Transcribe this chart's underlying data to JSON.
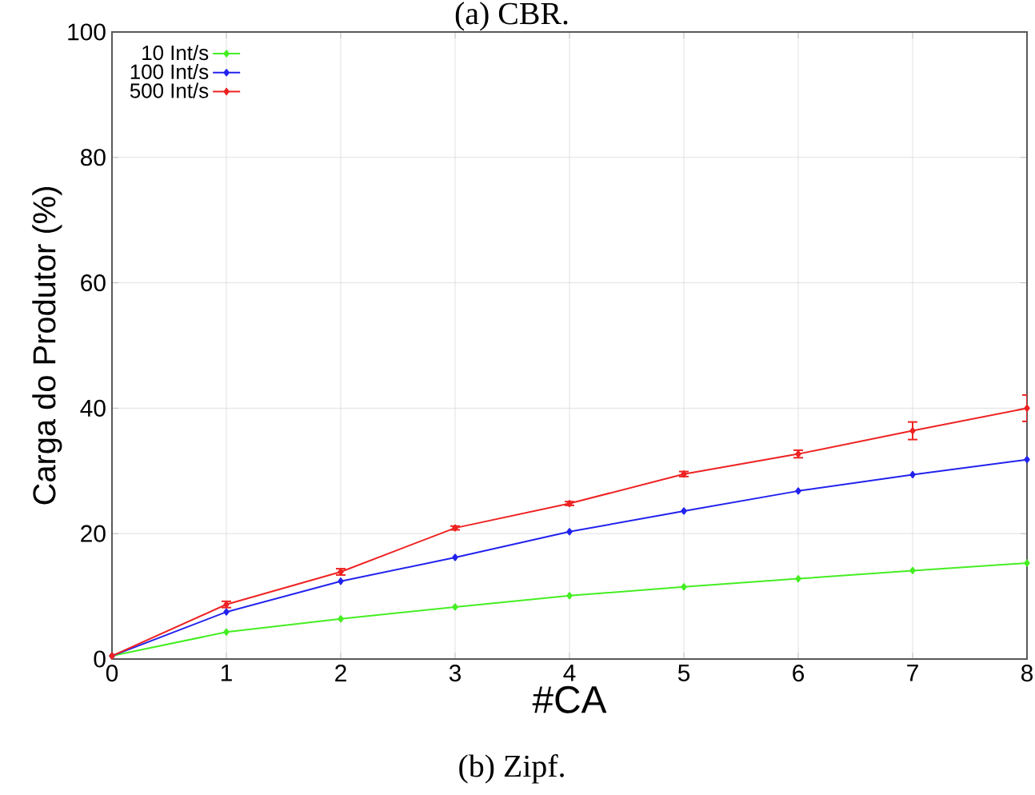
{
  "chart_data": {
    "type": "line",
    "xlabel": "#CA",
    "ylabel": "Carga do Produtor (%)",
    "annotations": [
      "(a) CBR.",
      "(b) Zipf."
    ],
    "x": [
      0,
      1,
      2,
      3,
      4,
      5,
      6,
      7,
      8
    ],
    "series": [
      {
        "name": "10 Int/s",
        "color": "#44ee22",
        "values": [
          0.5,
          4.3,
          6.4,
          8.3,
          10.1,
          11.5,
          12.8,
          14.1,
          15.3
        ]
      },
      {
        "name": "100 Int/s",
        "color": "#2222ee",
        "values": [
          0.5,
          7.5,
          12.4,
          16.2,
          20.3,
          23.6,
          26.8,
          29.4,
          31.8
        ]
      },
      {
        "name": "500 Int/s",
        "color": "#ee2222",
        "values": [
          0.5,
          8.7,
          13.9,
          20.9,
          24.8,
          29.5,
          32.7,
          36.4,
          40.0
        ],
        "errors": [
          null,
          0.5,
          0.5,
          0.3,
          0.3,
          0.4,
          0.6,
          1.4,
          2.1
        ]
      }
    ],
    "xlim": [
      0,
      8
    ],
    "ylim": [
      0,
      100
    ],
    "xticks": [
      0,
      1,
      2,
      3,
      4,
      5,
      6,
      7,
      8
    ],
    "yticks": [
      0,
      20,
      40,
      60,
      80,
      100
    ],
    "grid": true,
    "legend": "top left",
    "marker": "diamond",
    "line_style": "solid"
  }
}
